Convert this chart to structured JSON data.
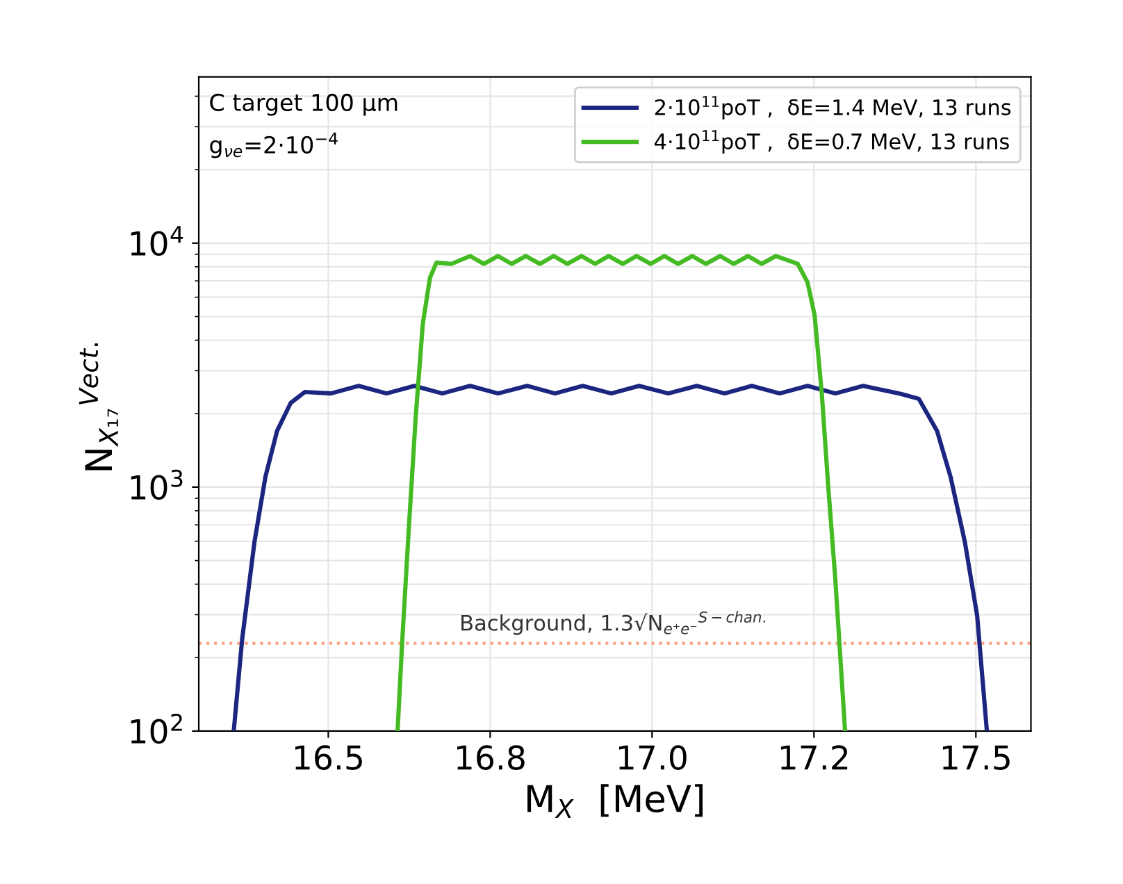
{
  "chart_data": {
    "type": "line",
    "xlabel": "M$_{X}$  [MeV]",
    "ylabel": "N$_{X₁₇}$$^{Vect.}$",
    "log": "y",
    "xlim": [
      16.3,
      17.585
    ],
    "ylim": [
      100,
      48000
    ],
    "xticks": [
      {
        "value": 16.5,
        "label": "16.5"
      },
      {
        "value": 16.75,
        "label": "16.8"
      },
      {
        "value": 17.0,
        "label": "17.0"
      },
      {
        "value": 17.25,
        "label": "17.2"
      },
      {
        "value": 17.5,
        "label": "17.5"
      }
    ],
    "yticks": [
      {
        "value": 100,
        "label": "10$^{2}$"
      },
      {
        "value": 1000,
        "label": "10$^{3}$"
      },
      {
        "value": 10000,
        "label": "10$^{4}$"
      }
    ],
    "grid": true,
    "legend": "top right",
    "annotations": [
      "C target 100 μm",
      "g$_{νe}$=2·10$^{−4}$"
    ],
    "ref_lines": [
      {
        "axis": "y",
        "value": 229,
        "label": "Background, 1.3√N$_{e⁺e⁻}$$^{S−chan.}$",
        "color": "#f4a582",
        "line_style": "dotted"
      }
    ],
    "series": [
      {
        "name": "2·10$^{11}$poT ,  δE=1.4 MeV, 13 runs",
        "color": "#1c2680",
        "x": [
          16.354,
          16.367,
          16.386,
          16.403,
          16.421,
          16.442,
          16.464,
          16.504,
          16.547,
          16.59,
          16.633,
          16.676,
          16.719,
          16.762,
          16.807,
          16.85,
          16.893,
          16.937,
          16.98,
          17.025,
          17.069,
          17.112,
          17.154,
          17.197,
          17.24,
          17.283,
          17.326,
          17.384,
          17.412,
          17.44,
          17.461,
          17.483,
          17.502,
          17.517
        ],
        "values": [
          100,
          238,
          596,
          1104,
          1702,
          2213,
          2455,
          2420,
          2600,
          2420,
          2600,
          2420,
          2600,
          2420,
          2600,
          2420,
          2600,
          2420,
          2600,
          2420,
          2600,
          2420,
          2600,
          2420,
          2600,
          2420,
          2600,
          2410,
          2300,
          1700,
          1100,
          596,
          297,
          100
        ]
      },
      {
        "name": "4·10$^{11}$poT ,  δE=0.7 MeV, 13 runs",
        "color": "#44bb22",
        "x": [
          16.607,
          16.614,
          16.624,
          16.635,
          16.646,
          16.657,
          16.667,
          16.69,
          16.719,
          16.74,
          16.762,
          16.783,
          16.805,
          16.827,
          16.848,
          16.869,
          16.891,
          16.912,
          16.933,
          16.955,
          16.976,
          16.998,
          17.019,
          17.04,
          17.062,
          17.083,
          17.105,
          17.126,
          17.148,
          17.169,
          17.191,
          17.225,
          17.24,
          17.251,
          17.262,
          17.272,
          17.283,
          17.298
        ],
        "values": [
          100,
          229,
          653,
          1941,
          4680,
          7210,
          8320,
          8220,
          8850,
          8220,
          8850,
          8220,
          8850,
          8220,
          8850,
          8220,
          8850,
          8220,
          8850,
          8220,
          8850,
          8220,
          8850,
          8220,
          8850,
          8220,
          8850,
          8220,
          8850,
          8220,
          8850,
          8220,
          6920,
          5060,
          2430,
          1007,
          418,
          100
        ]
      }
    ]
  }
}
